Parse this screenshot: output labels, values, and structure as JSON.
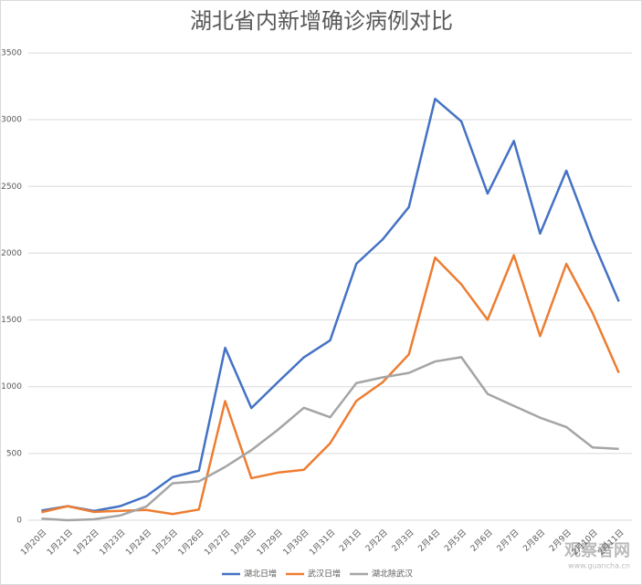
{
  "chart_data": {
    "type": "line",
    "title": "湖北省内新增确诊病例对比",
    "categories": [
      "1月20日",
      "1月21日",
      "1月22日",
      "1月23日",
      "1月24日",
      "1月25日",
      "1月26日",
      "1月27日",
      "1月28日",
      "1月29日",
      "1月30日",
      "1月31日",
      "2月1日",
      "2月2日",
      "2月3日",
      "2月4日",
      "2月5日",
      "2月6日",
      "2月7日",
      "2月8日",
      "2月9日",
      "2月10日",
      "2月11日"
    ],
    "series": [
      {
        "name": "湖北日增",
        "color": "#4472c4",
        "values": [
          72,
          105,
          69,
          105,
          180,
          323,
          371,
          1291,
          840,
          1032,
          1220,
          1347,
          1921,
          2103,
          2345,
          3156,
          2987,
          2447,
          2841,
          2147,
          2618,
          2097,
          1638
        ]
      },
      {
        "name": "武汉日增",
        "color": "#ed7d31",
        "values": [
          60,
          105,
          62,
          70,
          77,
          46,
          80,
          892,
          315,
          356,
          378,
          576,
          894,
          1033,
          1242,
          1967,
          1766,
          1501,
          1985,
          1379,
          1920,
          1552,
          1104
        ]
      },
      {
        "name": "湖北除武汉",
        "color": "#a5a5a5",
        "values": [
          12,
          0,
          7,
          35,
          103,
          277,
          291,
          399,
          525,
          676,
          842,
          771,
          1027,
          1070,
          1103,
          1189,
          1221,
          946,
          856,
          768,
          698,
          545,
          534
        ]
      }
    ],
    "ylim": [
      0,
      3500
    ],
    "yticks": [
      0,
      500,
      1000,
      1500,
      2000,
      2500,
      3000,
      3500
    ],
    "grid": true,
    "legend": "bottom",
    "watermark": "观察者网",
    "watermark_url": "www.guancha.cn"
  }
}
